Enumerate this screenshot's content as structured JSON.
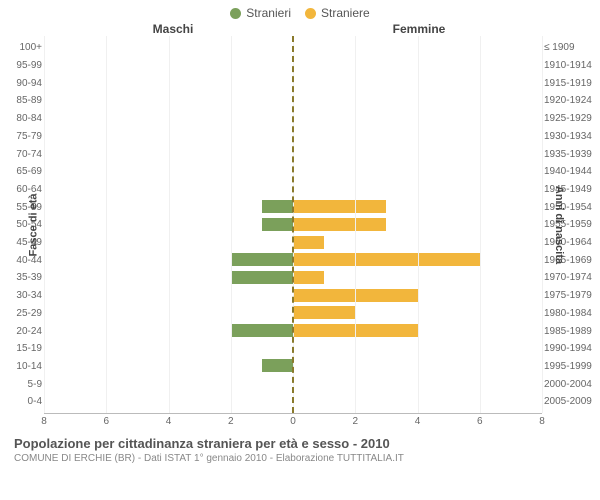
{
  "legend": {
    "male": {
      "label": "Stranieri",
      "color": "#7ba05b"
    },
    "female": {
      "label": "Straniere",
      "color": "#f2b63c"
    }
  },
  "headers": {
    "male": "Maschi",
    "female": "Femmine"
  },
  "axis": {
    "left_label": "Fasce di età",
    "right_label": "Anni di nascita",
    "xmax": 8,
    "xticks_left": [
      8,
      6,
      4,
      2,
      0
    ],
    "xticks_right": [
      0,
      2,
      4,
      6,
      8
    ],
    "grid_color": "#f0f0f0",
    "center_dash_color": "#8a7a2c"
  },
  "rows": [
    {
      "age": "100+",
      "birth": "≤ 1909",
      "m": 0,
      "f": 0
    },
    {
      "age": "95-99",
      "birth": "1910-1914",
      "m": 0,
      "f": 0
    },
    {
      "age": "90-94",
      "birth": "1915-1919",
      "m": 0,
      "f": 0
    },
    {
      "age": "85-89",
      "birth": "1920-1924",
      "m": 0,
      "f": 0
    },
    {
      "age": "80-84",
      "birth": "1925-1929",
      "m": 0,
      "f": 0
    },
    {
      "age": "75-79",
      "birth": "1930-1934",
      "m": 0,
      "f": 0
    },
    {
      "age": "70-74",
      "birth": "1935-1939",
      "m": 0,
      "f": 0
    },
    {
      "age": "65-69",
      "birth": "1940-1944",
      "m": 0,
      "f": 0
    },
    {
      "age": "60-64",
      "birth": "1945-1949",
      "m": 0,
      "f": 0
    },
    {
      "age": "55-59",
      "birth": "1950-1954",
      "m": 1,
      "f": 3
    },
    {
      "age": "50-54",
      "birth": "1955-1959",
      "m": 1,
      "f": 3
    },
    {
      "age": "45-49",
      "birth": "1960-1964",
      "m": 0,
      "f": 1
    },
    {
      "age": "40-44",
      "birth": "1965-1969",
      "m": 2,
      "f": 6
    },
    {
      "age": "35-39",
      "birth": "1970-1974",
      "m": 2,
      "f": 1
    },
    {
      "age": "30-34",
      "birth": "1975-1979",
      "m": 0,
      "f": 4
    },
    {
      "age": "25-29",
      "birth": "1980-1984",
      "m": 0,
      "f": 2
    },
    {
      "age": "20-24",
      "birth": "1985-1989",
      "m": 2,
      "f": 4
    },
    {
      "age": "15-19",
      "birth": "1990-1994",
      "m": 0,
      "f": 0
    },
    {
      "age": "10-14",
      "birth": "1995-1999",
      "m": 1,
      "f": 0
    },
    {
      "age": "5-9",
      "birth": "2000-2004",
      "m": 0,
      "f": 0
    },
    {
      "age": "0-4",
      "birth": "2005-2009",
      "m": 0,
      "f": 0
    }
  ],
  "footer": {
    "title": "Popolazione per cittadinanza straniera per età e sesso - 2010",
    "subtitle": "COMUNE DI ERCHIE (BR) - Dati ISTAT 1° gennaio 2010 - Elaborazione TUTTITALIA.IT"
  },
  "style": {
    "background": "#ffffff",
    "font": "Arial",
    "title_fontsize": 13,
    "tick_fontsize": 10
  }
}
